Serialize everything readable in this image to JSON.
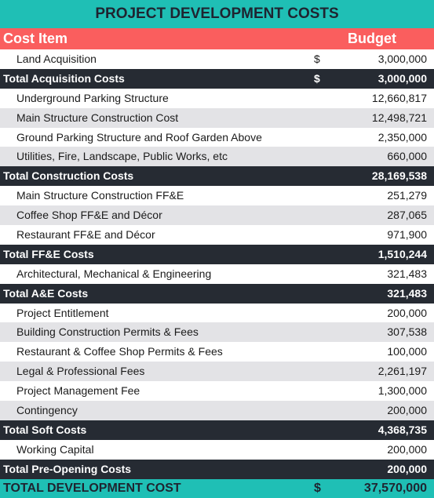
{
  "title": "PROJECT DEVELOPMENT COSTS",
  "columns": {
    "item": "Cost Item",
    "budget": "Budget"
  },
  "rows": [
    {
      "kind": "item",
      "label": "Land Acquisition",
      "currency": "$",
      "amount": "3,000,000"
    },
    {
      "kind": "total",
      "label": "Total Acquisition Costs",
      "currency": "$",
      "amount": "3,000,000"
    },
    {
      "kind": "item",
      "label": "Underground Parking Structure",
      "currency": "",
      "amount": "12,660,817"
    },
    {
      "kind": "item",
      "label": "Main Structure Construction Cost",
      "currency": "",
      "amount": "12,498,721"
    },
    {
      "kind": "item",
      "label": "Ground Parking Structure and Roof Garden Above",
      "currency": "",
      "amount": "2,350,000"
    },
    {
      "kind": "item",
      "label": "Utilities, Fire, Landscape, Public Works, etc",
      "currency": "",
      "amount": "660,000"
    },
    {
      "kind": "total",
      "label": "Total Construction Costs",
      "currency": "",
      "amount": "28,169,538"
    },
    {
      "kind": "item",
      "label": "Main Structure Construction FF&E",
      "currency": "",
      "amount": "251,279"
    },
    {
      "kind": "item",
      "label": "Coffee Shop FF&E and Décor",
      "currency": "",
      "amount": "287,065"
    },
    {
      "kind": "item",
      "label": "Restaurant FF&E and Décor",
      "currency": "",
      "amount": "971,900"
    },
    {
      "kind": "total",
      "label": "Total FF&E Costs",
      "currency": "",
      "amount": "1,510,244"
    },
    {
      "kind": "item",
      "label": "Architectural, Mechanical & Engineering",
      "currency": "",
      "amount": "321,483"
    },
    {
      "kind": "total",
      "label": "Total A&E Costs",
      "currency": "",
      "amount": "321,483"
    },
    {
      "kind": "item",
      "label": "Project Entitlement",
      "currency": "",
      "amount": "200,000"
    },
    {
      "kind": "item",
      "label": "Building Construction Permits & Fees",
      "currency": "",
      "amount": "307,538"
    },
    {
      "kind": "item",
      "label": "Restaurant & Coffee Shop Permits & Fees",
      "currency": "",
      "amount": "100,000"
    },
    {
      "kind": "item",
      "label": "Legal & Professional Fees",
      "currency": "",
      "amount": "2,261,197"
    },
    {
      "kind": "item",
      "label": "Project Management Fee",
      "currency": "",
      "amount": "1,300,000"
    },
    {
      "kind": "item",
      "label": "Contingency",
      "currency": "",
      "amount": "200,000"
    },
    {
      "kind": "total",
      "label": "Total Soft Costs",
      "currency": "",
      "amount": "4,368,735"
    },
    {
      "kind": "item",
      "label": "Working Capital",
      "currency": "",
      "amount": "200,000"
    },
    {
      "kind": "total",
      "label": "Total Pre-Opening Costs",
      "currency": "",
      "amount": "200,000"
    }
  ],
  "grand_total": {
    "label": "TOTAL DEVELOPMENT COST",
    "currency": "$",
    "amount": "37,570,000"
  },
  "colors": {
    "title_bg": "#1fbfb5",
    "header_bg": "#fa5e5e",
    "total_bg": "#262b33",
    "shade_bg": "#e3e3e6"
  }
}
